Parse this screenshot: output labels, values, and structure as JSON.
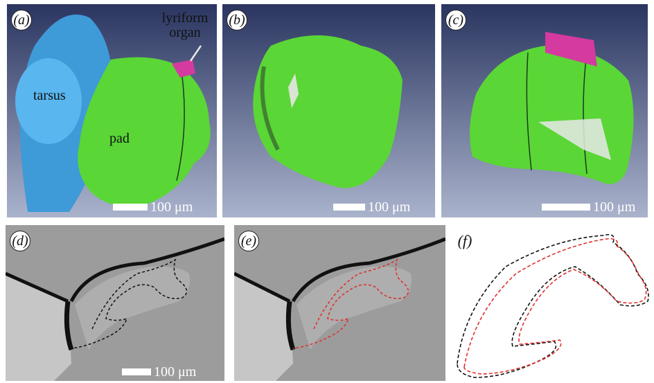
{
  "figure": {
    "panel_labels": [
      "(a)",
      "(b)",
      "(c)",
      "(d)",
      "(e)",
      "(f)"
    ],
    "annotations": {
      "lyriform_organ": "lyriform\norgan",
      "tarsus": "tarsus",
      "pad": "pad"
    },
    "scale_bars": {
      "a": "100 μm",
      "b": "100 μm",
      "c": "100 μm",
      "d": "100 μm"
    },
    "colors": {
      "tarsus": "#3f9ad8",
      "pad": "#5ad636",
      "lyriform": "#d43aa0",
      "background_top": "#2a3560",
      "background_bottom": "#aeb6cf",
      "outline_black": "#111111",
      "outline_red": "#e0302c"
    }
  }
}
